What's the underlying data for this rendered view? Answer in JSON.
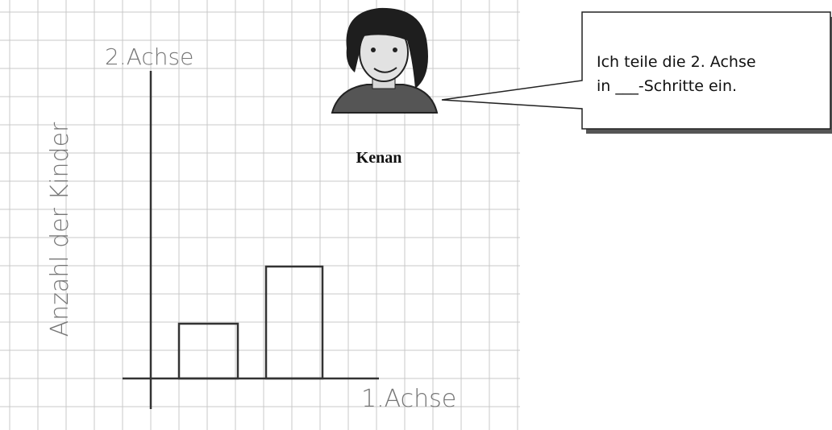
{
  "axes": {
    "y_label": "2.Achse",
    "x_label": "1.Achse",
    "y_title": "Anzahl der Kinder"
  },
  "character": {
    "name": "Kenan"
  },
  "speech_bubble": {
    "line1": "Ich teile die 2. Achse",
    "line2": "in ___-Schritte ein."
  }
}
